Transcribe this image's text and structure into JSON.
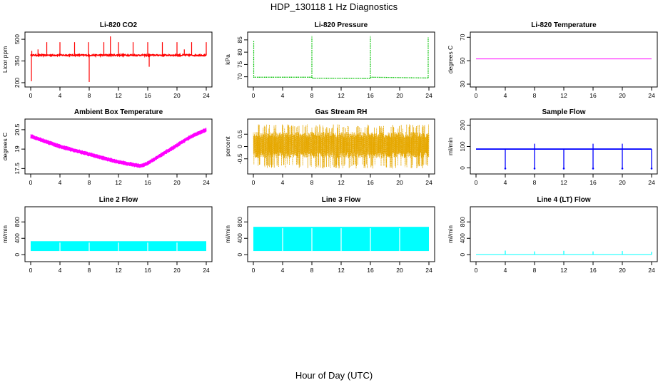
{
  "figure": {
    "title": "HDP_130118  1 Hz Diagnostics",
    "xlabel": "Hour of Day (UTC)"
  },
  "chart_data": [
    {
      "id": "co2",
      "type": "line",
      "title": "Li-820 CO2",
      "ylabel": "Licor ppm",
      "xlim": [
        0,
        24
      ],
      "xticks": [
        0,
        4,
        8,
        12,
        16,
        20,
        24
      ],
      "ylim": [
        190,
        530
      ],
      "yticks": [
        200,
        350,
        500
      ],
      "color": "#ff0000",
      "series": [
        {
          "baseline": 390,
          "noise": 10,
          "spikes": [
            {
              "x": 0.1,
              "y": 210
            },
            {
              "x": 0.15,
              "y": 420
            },
            {
              "x": 1.0,
              "y": 430
            },
            {
              "x": 2.2,
              "y": 480
            },
            {
              "x": 4.0,
              "y": 480
            },
            {
              "x": 6.0,
              "y": 480
            },
            {
              "x": 7.9,
              "y": 480
            },
            {
              "x": 8.0,
              "y": 205
            },
            {
              "x": 10.0,
              "y": 480
            },
            {
              "x": 10.9,
              "y": 520
            },
            {
              "x": 12.0,
              "y": 480
            },
            {
              "x": 14.0,
              "y": 480
            },
            {
              "x": 16.0,
              "y": 480
            },
            {
              "x": 16.2,
              "y": 310
            },
            {
              "x": 18.0,
              "y": 480
            },
            {
              "x": 20.0,
              "y": 480
            },
            {
              "x": 21.0,
              "y": 430
            },
            {
              "x": 22.0,
              "y": 480
            },
            {
              "x": 24.0,
              "y": 480
            }
          ]
        }
      ]
    },
    {
      "id": "pressure",
      "type": "line",
      "title": "Li-820 Pressure",
      "ylabel": "kPa",
      "xlim": [
        0,
        24
      ],
      "xticks": [
        0,
        4,
        8,
        12,
        16,
        20,
        24
      ],
      "ylim": [
        67,
        87
      ],
      "yticks": [
        70,
        75,
        80,
        85
      ],
      "color": "#00c000",
      "series": [
        {
          "segments": [
            [
              0,
              69.8
            ],
            [
              8,
              69.8
            ],
            [
              8.1,
              69.4
            ],
            [
              16,
              69.3
            ],
            [
              16.1,
              69.8
            ],
            [
              24,
              69.5
            ]
          ],
          "spikes": [
            {
              "x": 0.05,
              "y": 84.5
            },
            {
              "x": 8.0,
              "y": 86.5
            },
            {
              "x": 16.0,
              "y": 86.5
            },
            {
              "x": 23.9,
              "y": 86.0
            }
          ]
        }
      ]
    },
    {
      "id": "licor_temp",
      "type": "line",
      "title": "Li-820 Temperature",
      "ylabel": "degrees C",
      "xlim": [
        0,
        24
      ],
      "xticks": [
        0,
        4,
        8,
        12,
        16,
        20,
        24
      ],
      "ylim": [
        30,
        72
      ],
      "yticks": [
        30,
        50,
        70
      ],
      "color": "#ff00ff",
      "series": [
        {
          "segments": [
            [
              0,
              51.5
            ],
            [
              24,
              51.5
            ]
          ]
        }
      ]
    },
    {
      "id": "box_temp",
      "type": "line",
      "title": "Ambient Box Temperature",
      "ylabel": "degrees C",
      "xlim": [
        0,
        24
      ],
      "xticks": [
        0,
        4,
        8,
        12,
        16,
        20,
        24
      ],
      "ylim": [
        17.3,
        21.1
      ],
      "yticks": [
        17.5,
        19.0,
        20.5
      ],
      "color": "#ff00ff",
      "series": [
        {
          "curve": [
            [
              0,
              20.0
            ],
            [
              2,
              19.6
            ],
            [
              4,
              19.2
            ],
            [
              6,
              18.9
            ],
            [
              8,
              18.6
            ],
            [
              10,
              18.3
            ],
            [
              12,
              18.0
            ],
            [
              14,
              17.8
            ],
            [
              15,
              17.7
            ],
            [
              16,
              17.9
            ],
            [
              18,
              18.6
            ],
            [
              20,
              19.3
            ],
            [
              22,
              20.0
            ],
            [
              24,
              20.5
            ]
          ],
          "band": 0.35
        }
      ]
    },
    {
      "id": "rh",
      "type": "line",
      "title": "Gas Stream RH",
      "ylabel": "percent",
      "xlim": [
        0,
        24
      ],
      "xticks": [
        0,
        4,
        8,
        12,
        16,
        20,
        24
      ],
      "ylim": [
        -1.0,
        1.0
      ],
      "yticks": [
        -0.5,
        0.0,
        0.5
      ],
      "color": "#e6a800",
      "series": [
        {
          "min": -0.9,
          "max": 0.9,
          "core_min": -0.4,
          "core_max": 0.6
        }
      ]
    },
    {
      "id": "sample_flow",
      "type": "line",
      "title": "Sample Flow",
      "ylabel": "ml/min",
      "xlim": [
        0,
        24
      ],
      "xticks": [
        0,
        4,
        8,
        12,
        16,
        20,
        24
      ],
      "ylim": [
        -15,
        215
      ],
      "yticks": [
        0,
        100,
        200
      ],
      "color": "#0000ff",
      "series": [
        {
          "baseline": 88,
          "band": 6,
          "dips": [
            {
              "x": 4.0,
              "y": -3
            },
            {
              "x": 8.0,
              "y": -3
            },
            {
              "x": 12.0,
              "y": -3
            },
            {
              "x": 16.0,
              "y": -3
            },
            {
              "x": 20.0,
              "y": -3
            },
            {
              "x": 24.0,
              "y": -3
            }
          ]
        }
      ]
    },
    {
      "id": "line2",
      "type": "area",
      "title": "Line 2 Flow",
      "ylabel": "ml/min",
      "xlim": [
        0,
        24
      ],
      "xticks": [
        0,
        4,
        8,
        12,
        16,
        20,
        24
      ],
      "ylim": [
        -100,
        1100
      ],
      "yticks": [
        0,
        400,
        800
      ],
      "color": "#00ffff",
      "series": [
        {
          "low": 90,
          "high": 330,
          "gaps": [
            4,
            8,
            12,
            16,
            20
          ]
        }
      ]
    },
    {
      "id": "line3",
      "type": "area",
      "title": "Line 3 Flow",
      "ylabel": "ml/min",
      "xlim": [
        0,
        24
      ],
      "xticks": [
        0,
        4,
        8,
        12,
        16,
        20,
        24
      ],
      "ylim": [
        -100,
        1100
      ],
      "yticks": [
        0,
        400,
        800
      ],
      "color": "#00ffff",
      "series": [
        {
          "low": 90,
          "high": 680,
          "gaps": [
            4,
            8,
            12,
            16,
            20
          ]
        }
      ]
    },
    {
      "id": "line4",
      "type": "line",
      "title": "Line 4 (LT) Flow",
      "ylabel": "ml/min",
      "xlim": [
        0,
        24
      ],
      "xticks": [
        0,
        4,
        8,
        12,
        16,
        20,
        24
      ],
      "ylim": [
        -100,
        1100
      ],
      "yticks": [
        0,
        400,
        800
      ],
      "color": "#00ffff",
      "series": [
        {
          "baseline": 5,
          "spikes": [
            {
              "x": 4.0,
              "y": 100
            },
            {
              "x": 8.0,
              "y": 80
            },
            {
              "x": 12.0,
              "y": 95
            },
            {
              "x": 16.0,
              "y": 80
            },
            {
              "x": 20.0,
              "y": 90
            },
            {
              "x": 24.0,
              "y": 70
            }
          ]
        }
      ]
    }
  ]
}
